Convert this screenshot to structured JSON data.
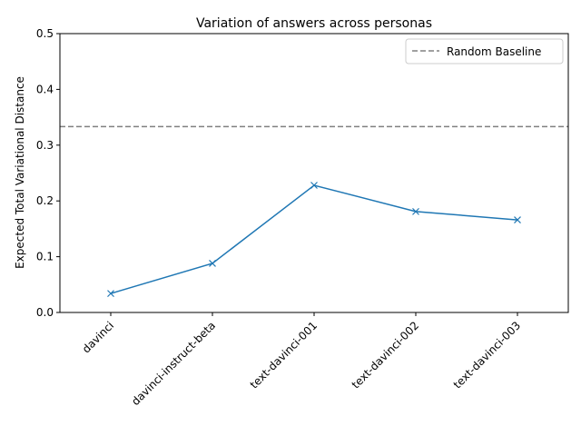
{
  "chart_data": {
    "type": "line",
    "title": "Variation of answers across personas",
    "xlabel": "",
    "ylabel": "Expected Total Variational Distance",
    "categories": [
      "davinci",
      "davinci-instruct-beta",
      "text-davinci-001",
      "text-davinci-002",
      "text-davinci-003"
    ],
    "series": [
      {
        "values": [
          0.034,
          0.088,
          0.228,
          0.181,
          0.166
        ],
        "color": "#1f77b4",
        "marker": "x"
      }
    ],
    "baseline": {
      "name": "Random Baseline",
      "value": 0.3333,
      "color": "#808080",
      "style": "dashed"
    },
    "ylim": [
      0,
      0.5
    ],
    "yticks": [
      "0.0",
      "0.1",
      "0.2",
      "0.3",
      "0.4",
      "0.5"
    ],
    "grid": false,
    "legend": "top-right"
  }
}
